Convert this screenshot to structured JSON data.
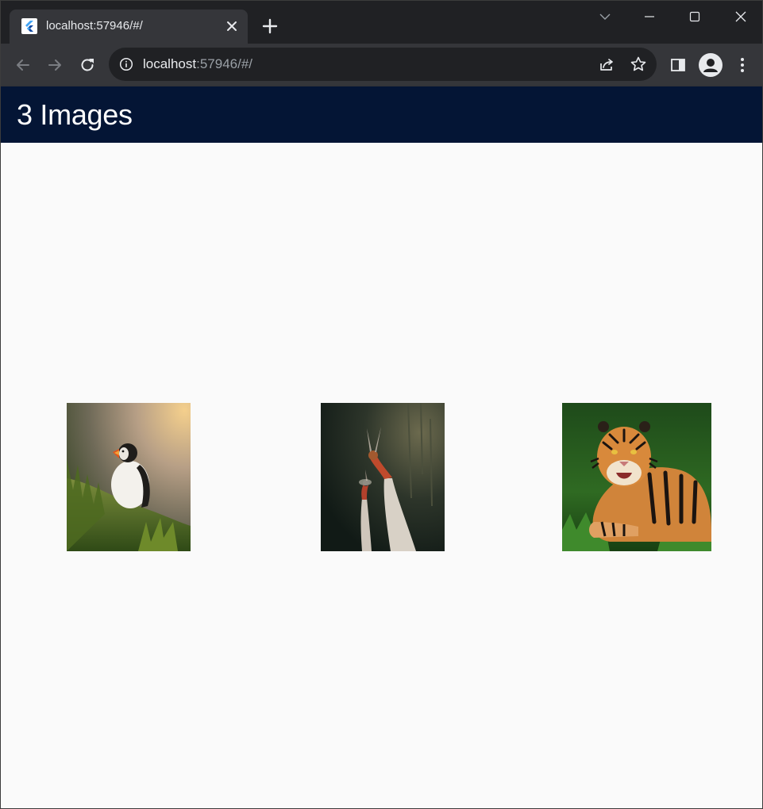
{
  "browser": {
    "tab": {
      "title": "localhost:57946/#/",
      "favicon": "flutter-logo-icon"
    },
    "new_tab_icon": "plus-icon",
    "window_controls": [
      "tab-search-icon",
      "minimize-icon",
      "maximize-icon",
      "close-icon"
    ],
    "toolbar": {
      "back_icon": "back-arrow-icon",
      "forward_icon": "forward-arrow-icon",
      "reload_icon": "reload-icon",
      "site_info_icon": "info-icon",
      "url_host": "localhost",
      "url_rest": ":57946/#/",
      "share_icon": "share-icon",
      "bookmark_icon": "star-icon",
      "side_panel_icon": "side-panel-icon",
      "profile_icon": "avatar-icon",
      "menu_icon": "kebab-menu-icon"
    }
  },
  "app": {
    "title": "3 Images",
    "appbar_color": "#041535",
    "background_color": "#fafafa",
    "images": [
      {
        "subject": "puffin",
        "icon": "puffin-photo"
      },
      {
        "subject": "cranes",
        "icon": "cranes-photo"
      },
      {
        "subject": "tiger",
        "icon": "tiger-photo"
      }
    ]
  }
}
